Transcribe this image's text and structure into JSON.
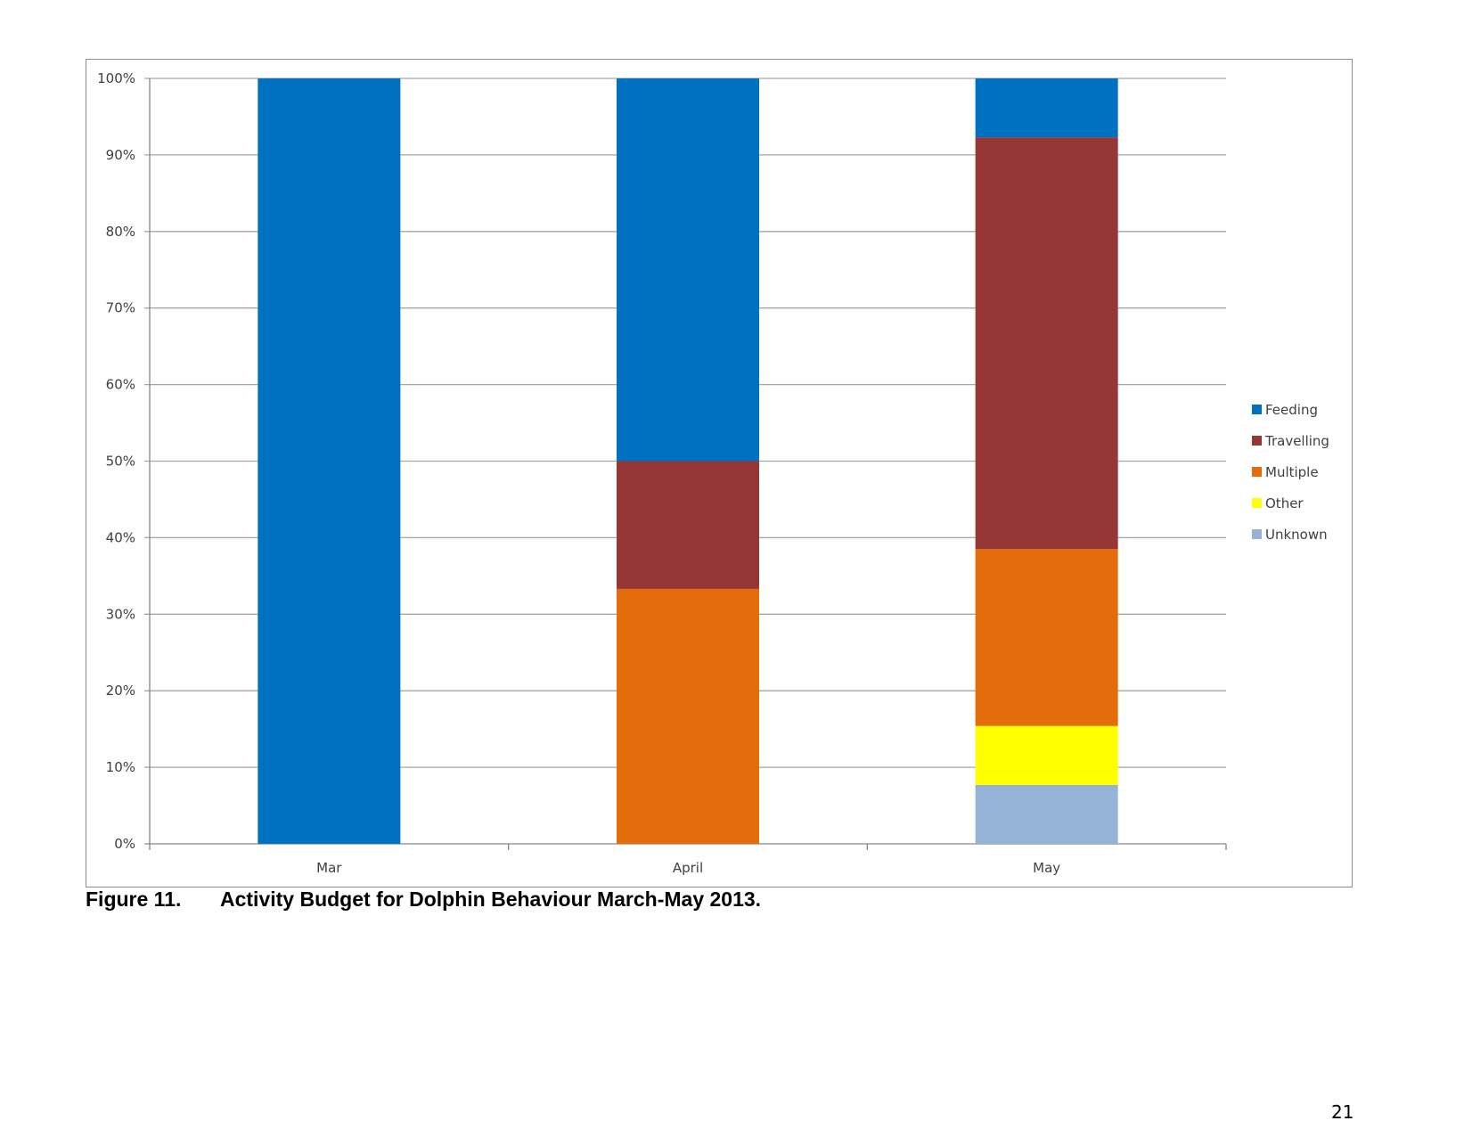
{
  "chart_data": {
    "type": "bar",
    "stacked": "percent",
    "categories": [
      "Mar",
      "April",
      "May"
    ],
    "series": [
      {
        "name": "Feeding",
        "color": "#0070C0",
        "values": [
          100,
          50,
          7.7
        ]
      },
      {
        "name": "Travelling",
        "color": "#953735",
        "values": [
          0,
          16.7,
          53.8
        ]
      },
      {
        "name": "Multiple",
        "color": "#E46C0A",
        "values": [
          0,
          33.3,
          23.1
        ]
      },
      {
        "name": "Other",
        "color": "#FFFF00",
        "values": [
          0,
          0,
          7.7
        ]
      },
      {
        "name": "Unknown",
        "color": "#95B3D7",
        "values": [
          0,
          0,
          7.7
        ]
      }
    ],
    "ylim": [
      0,
      100
    ],
    "ytick_labels": [
      "0%",
      "10%",
      "20%",
      "30%",
      "40%",
      "50%",
      "60%",
      "70%",
      "80%",
      "90%",
      "100%"
    ],
    "grid": true,
    "legend_position": "right"
  },
  "caption": {
    "label": "Figure 11.",
    "text": "Activity Budget for Dolphin Behaviour March-May 2013."
  },
  "page_number": "21"
}
